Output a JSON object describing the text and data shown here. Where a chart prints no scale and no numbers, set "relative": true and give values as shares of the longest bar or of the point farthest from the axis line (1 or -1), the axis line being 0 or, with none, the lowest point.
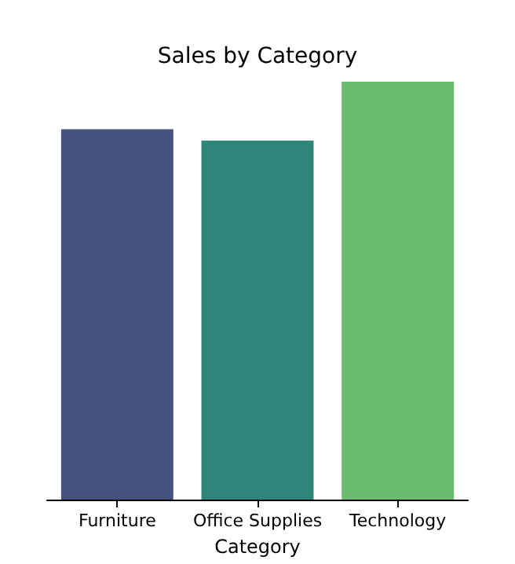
{
  "chart_data": {
    "type": "bar",
    "title": "Sales by Category",
    "xlabel": "Category",
    "relative": true,
    "categories": [
      "Furniture",
      "Office Supplies",
      "Technology"
    ],
    "values": [
      0.886,
      0.859,
      1
    ],
    "colors": [
      "#46527e",
      "#2e8579",
      "#6abd6d"
    ]
  }
}
